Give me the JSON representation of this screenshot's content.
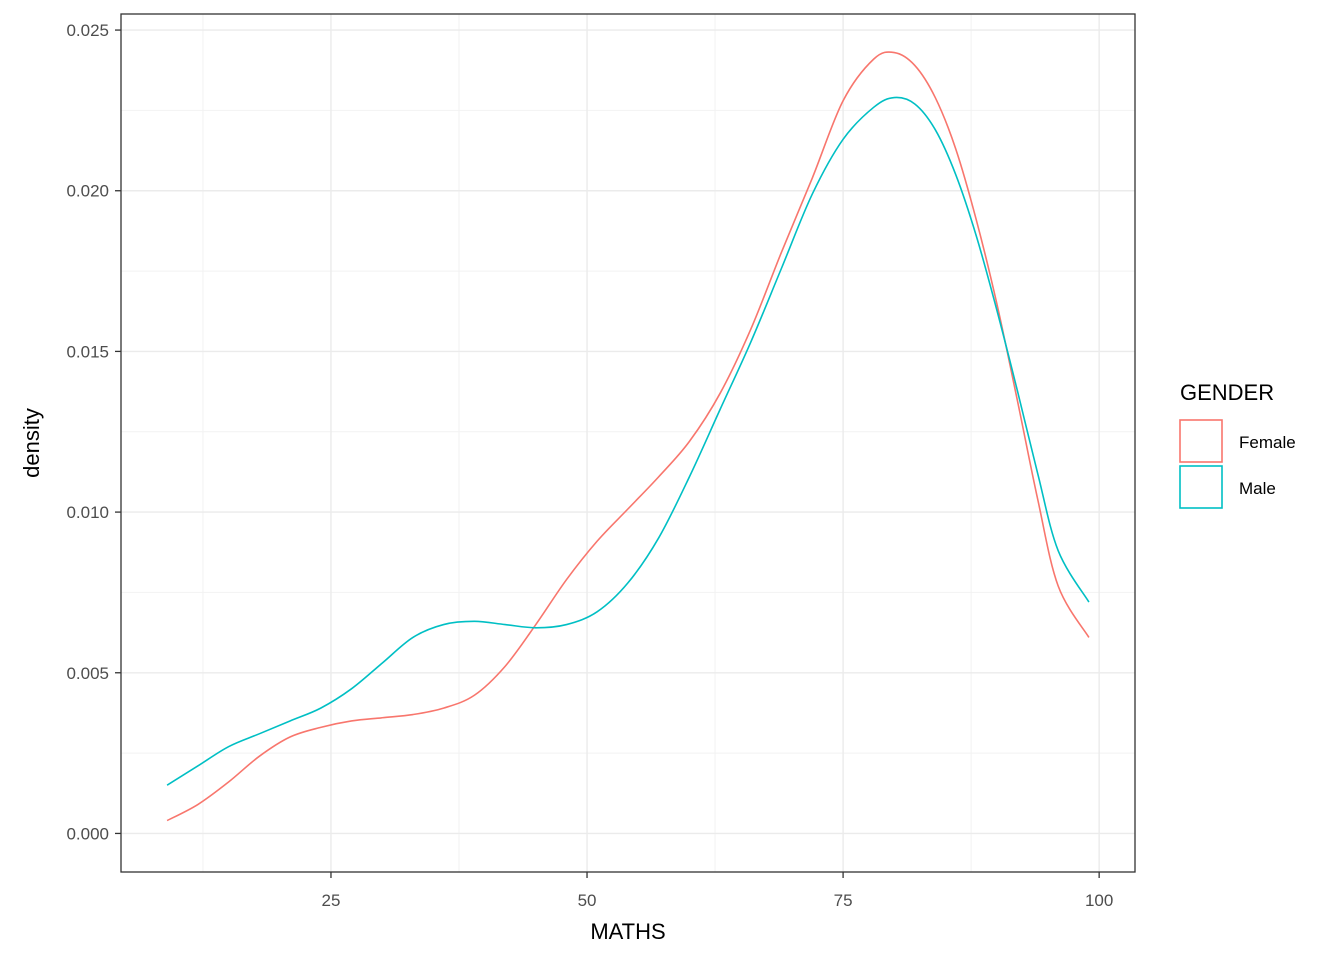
{
  "chart_data": {
    "type": "line",
    "subtype": "density",
    "xlabel": "MATHS",
    "ylabel": "density",
    "xlim": [
      4.5,
      103.5
    ],
    "ylim": [
      -0.0012,
      0.0255
    ],
    "x_ticks": [
      25,
      50,
      75,
      100
    ],
    "x_tick_labels": [
      "25",
      "50",
      "75",
      "100"
    ],
    "y_ticks": [
      0.0,
      0.005,
      0.01,
      0.015,
      0.02,
      0.025
    ],
    "y_tick_labels": [
      "0.000",
      "0.005",
      "0.010",
      "0.015",
      "0.020",
      "0.025"
    ],
    "grid": true,
    "legend": {
      "title": "GENDER",
      "position": "right"
    },
    "series": [
      {
        "name": "Female",
        "color": "#F8766D",
        "x": [
          9,
          12,
          15,
          18,
          21,
          24,
          27,
          30,
          33,
          36,
          39,
          42,
          45,
          48,
          51,
          54,
          57,
          60,
          63,
          66,
          69,
          72,
          75,
          78,
          80,
          82,
          84,
          86,
          88,
          90,
          92,
          94,
          96,
          99
        ],
        "y": [
          0.0004,
          0.0009,
          0.0016,
          0.0024,
          0.003,
          0.0033,
          0.0035,
          0.0036,
          0.0037,
          0.0039,
          0.0043,
          0.0052,
          0.0065,
          0.0079,
          0.0091,
          0.0101,
          0.0111,
          0.0122,
          0.0137,
          0.0157,
          0.0181,
          0.0204,
          0.0228,
          0.0241,
          0.0243,
          0.0239,
          0.0229,
          0.0213,
          0.0191,
          0.0165,
          0.0135,
          0.0104,
          0.0077,
          0.0061
        ]
      },
      {
        "name": "Male",
        "color": "#00BFC4",
        "x": [
          9,
          12,
          15,
          18,
          21,
          24,
          27,
          30,
          33,
          36,
          39,
          42,
          45,
          48,
          51,
          54,
          57,
          60,
          63,
          66,
          69,
          72,
          75,
          78,
          80,
          82,
          84,
          86,
          88,
          90,
          92,
          94,
          96,
          99
        ],
        "y": [
          0.0015,
          0.0021,
          0.0027,
          0.0031,
          0.0035,
          0.0039,
          0.0045,
          0.0053,
          0.0061,
          0.0065,
          0.0066,
          0.0065,
          0.0064,
          0.0065,
          0.0069,
          0.0078,
          0.0092,
          0.0111,
          0.0132,
          0.0153,
          0.0176,
          0.0199,
          0.0216,
          0.0226,
          0.0229,
          0.0227,
          0.0219,
          0.0205,
          0.0186,
          0.0163,
          0.0138,
          0.0112,
          0.0088,
          0.0072
        ]
      }
    ]
  }
}
